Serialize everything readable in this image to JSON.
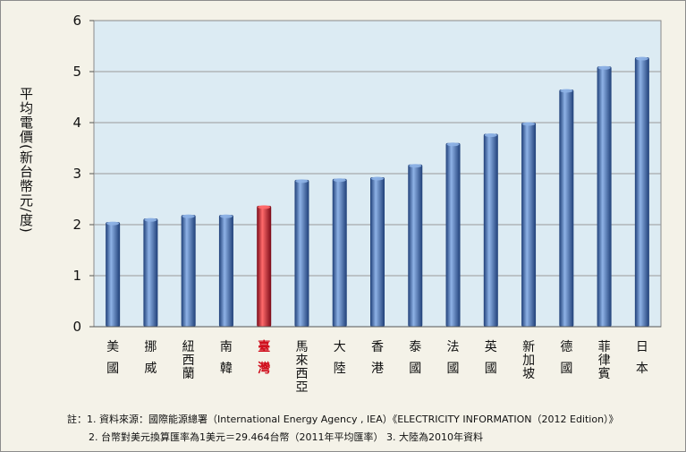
{
  "chart_data": {
    "type": "bar",
    "title": "",
    "xlabel": "",
    "ylabel": "平均電價(新台幣元/度)",
    "ylim": [
      0,
      6
    ],
    "yticks": [
      "0",
      "1",
      "2",
      "3",
      "4",
      "5",
      "6"
    ],
    "grid": true,
    "categories": [
      "美國",
      "挪威",
      "紐西蘭",
      "南韓",
      "臺灣",
      "馬來西亞",
      "大陸",
      "香港",
      "泰國",
      "法國",
      "英國",
      "新加坡",
      "德國",
      "菲律賓",
      "日本"
    ],
    "values": [
      2.05,
      2.12,
      2.19,
      2.19,
      2.37,
      2.88,
      2.9,
      2.93,
      3.18,
      3.6,
      3.78,
      4.0,
      4.65,
      5.1,
      5.28
    ],
    "highlight_index": 4,
    "colors": {
      "bar": "#4a73b8",
      "bar_dark": "#1f3f78",
      "bar_light": "#8eb2e6",
      "highlight": "#c8102e",
      "highlight_dark": "#7a0a18",
      "highlight_light": "#ff6a6a",
      "plot_bg": "#dcebf3",
      "grid": "#9a9a9a",
      "highlight_text": "#d0101e"
    }
  },
  "notes": [
    "註：1. 資料來源：國際能源總署（International Energy Agency , IEA）《ELECTRICITY  INFORMATION（2012 Edition）》",
    "2. 台幣對美元換算匯率為1美元＝29.464台幣（2011年平均匯率）  3. 大陸為2010年資料"
  ]
}
